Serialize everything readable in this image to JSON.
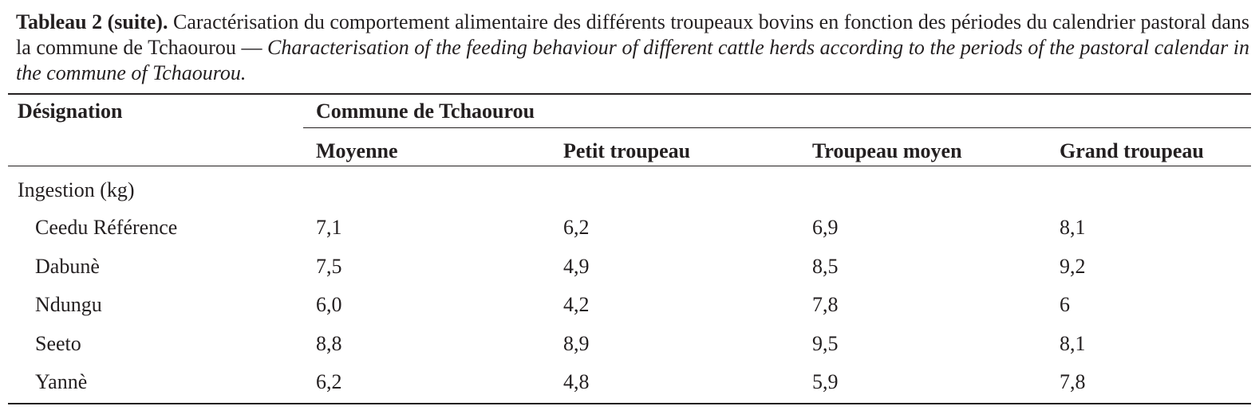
{
  "caption": {
    "label": "Tableau 2 (suite).",
    "french": "Caractérisation du comportement alimentaire des différents troupeaux bovins en fonction des périodes du calendrier pastoral dans la commune de Tchaourou —",
    "english": "Characterisation of the feeding behaviour of different cattle herds according to the periods of the pastoral calendar in the commune of Tchaourou."
  },
  "table": {
    "header": {
      "designation": "Désignation",
      "group": "Commune de Tchaourou",
      "columns": [
        "Moyenne",
        "Petit troupeau",
        "Troupeau moyen",
        "Grand troupeau"
      ]
    },
    "section": "Ingestion (kg)",
    "rows": [
      [
        "Ceedu Référence",
        "7,1",
        "6,2",
        "6,9",
        "8,1"
      ],
      [
        "Dabunè",
        "7,5",
        "4,9",
        "8,5",
        "9,2"
      ],
      [
        "Ndungu",
        "6,0",
        "4,2",
        "7,8",
        "6"
      ],
      [
        "Seeto",
        "8,8",
        "8,9",
        "9,5",
        "8,1"
      ],
      [
        "Yannè",
        "6,2",
        "4,8",
        "5,9",
        "7,8"
      ]
    ]
  }
}
